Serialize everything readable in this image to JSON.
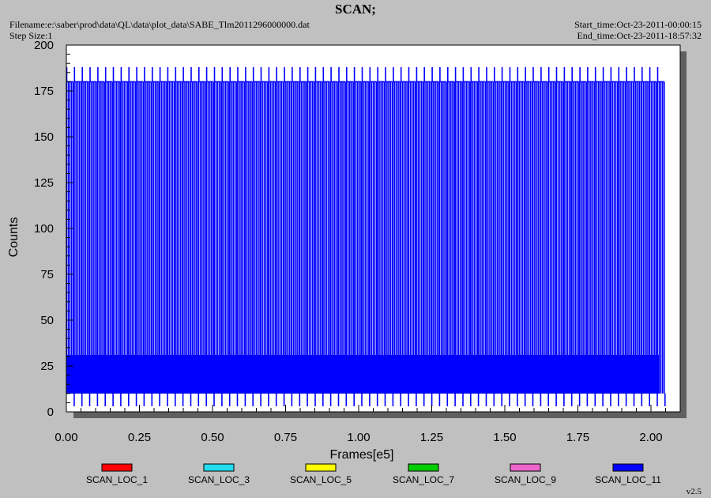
{
  "header": {
    "title": "SCAN;",
    "filename": "Filename:e:\\saber\\prod\\data\\QL\\data\\plot_data\\SABE_Tlm2011296000000.dat",
    "step_size": "Step Size:1",
    "start_time": "Start_time:Oct-23-2011-00:00:15",
    "end_time": "End_time:Oct-23-2011-18:57:32"
  },
  "version": "v2.5",
  "chart_data": {
    "type": "line",
    "title": "SCAN;",
    "xlabel": "Frames[e5]",
    "ylabel": "Counts",
    "xlim": [
      0,
      2.1
    ],
    "ylim": [
      0,
      200
    ],
    "x_ticks": [
      "0.00",
      "0.25",
      "0.50",
      "0.75",
      "1.00",
      "1.25",
      "1.50",
      "1.75",
      "2.00"
    ],
    "y_ticks": [
      "0",
      "25",
      "50",
      "75",
      "100",
      "125",
      "150",
      "175",
      "200"
    ],
    "x_tick_values": [
      0,
      0.25,
      0.5,
      0.75,
      1.0,
      1.25,
      1.5,
      1.75,
      2.0
    ],
    "y_tick_values": [
      0,
      25,
      50,
      75,
      100,
      125,
      150,
      175,
      200
    ],
    "grid": false,
    "legend_position": "bottom",
    "series": [
      {
        "name": "SCAN_LOC_1",
        "color": "#ff0000",
        "values": []
      },
      {
        "name": "SCAN_LOC_3",
        "color": "#22ddee",
        "values": []
      },
      {
        "name": "SCAN_LOC_5",
        "color": "#ffff00",
        "values": []
      },
      {
        "name": "SCAN_LOC_7",
        "color": "#00cc00",
        "values": []
      },
      {
        "name": "SCAN_LOC_9",
        "color": "#ee66cc",
        "values": []
      },
      {
        "name": "SCAN_LOC_11",
        "color": "#0000ff",
        "description_levels": {
          "scan_top": 180,
          "scan_peak": 188,
          "scan_base": 10,
          "dense_band_low": 10,
          "dense_band_high": 31,
          "scan_period_e5": 0.0266,
          "data_start_e5": 0.0,
          "data_end_e5": 2.03
        },
        "values": []
      }
    ]
  }
}
